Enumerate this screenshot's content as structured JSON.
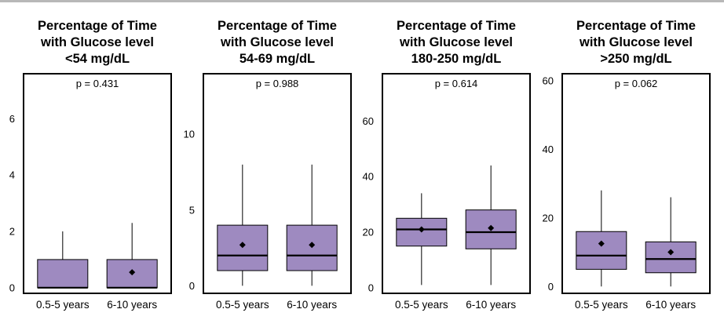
{
  "chart_data": [
    {
      "type": "boxplot",
      "title": [
        "Percentage of Time",
        "with Glucose level",
        "<54 mg/dL"
      ],
      "annotation": "p = 0.431",
      "categories": [
        "0.5-5 years",
        "6-10 years"
      ],
      "yticks": [
        0,
        2,
        4,
        6
      ],
      "ylim": [
        -0.2,
        7.6
      ],
      "colors": {
        "box": "#9e8ac0",
        "line": "#000000"
      },
      "boxes": [
        {
          "min": 0,
          "q1": 0,
          "median": 0,
          "q3": 1.0,
          "max": 2.0,
          "mean": null
        },
        {
          "min": 0,
          "q1": 0,
          "median": 0,
          "q3": 1.0,
          "max": 2.3,
          "mean": 0.55
        }
      ]
    },
    {
      "type": "boxplot",
      "title": [
        "Percentage of Time",
        "with Glucose level",
        "54-69 mg/dL"
      ],
      "annotation": "p = 0.988",
      "categories": [
        "0.5-5 years",
        "6-10 years"
      ],
      "yticks": [
        0,
        5,
        10
      ],
      "ylim": [
        -0.5,
        14
      ],
      "colors": {
        "box": "#9e8ac0",
        "line": "#000000"
      },
      "boxes": [
        {
          "min": 0,
          "q1": 1.0,
          "median": 2.0,
          "q3": 4.0,
          "max": 8.0,
          "mean": 2.7
        },
        {
          "min": 0,
          "q1": 1.0,
          "median": 2.0,
          "q3": 4.0,
          "max": 8.0,
          "mean": 2.7
        }
      ]
    },
    {
      "type": "boxplot",
      "title": [
        "Percentage of Time",
        "with Glucose level",
        "180-250 mg/dL"
      ],
      "annotation": "p = 0.614",
      "categories": [
        "0.5-5 years",
        "6-10 years"
      ],
      "yticks": [
        0,
        20,
        40,
        60
      ],
      "ylim": [
        -2,
        77
      ],
      "colors": {
        "box": "#9e8ac0",
        "line": "#000000"
      },
      "boxes": [
        {
          "min": 1,
          "q1": 15,
          "median": 21,
          "q3": 25,
          "max": 34,
          "mean": 21
        },
        {
          "min": 1,
          "q1": 14,
          "median": 20,
          "q3": 28,
          "max": 44,
          "mean": 21.5
        }
      ]
    },
    {
      "type": "boxplot",
      "title": [
        "Percentage of Time",
        "with Glucose level",
        ">250 mg/dL"
      ],
      "annotation": "p = 0.062",
      "categories": [
        "0.5-5 years",
        "6-10 years"
      ],
      "yticks": [
        0,
        20,
        40,
        60
      ],
      "ylim": [
        -2,
        62
      ],
      "colors": {
        "box": "#9e8ac0",
        "line": "#000000"
      },
      "boxes": [
        {
          "min": 0,
          "q1": 5,
          "median": 9,
          "q3": 16,
          "max": 28,
          "mean": 12.5
        },
        {
          "min": 0,
          "q1": 4,
          "median": 8,
          "q3": 13,
          "max": 26,
          "mean": 10
        }
      ]
    }
  ]
}
